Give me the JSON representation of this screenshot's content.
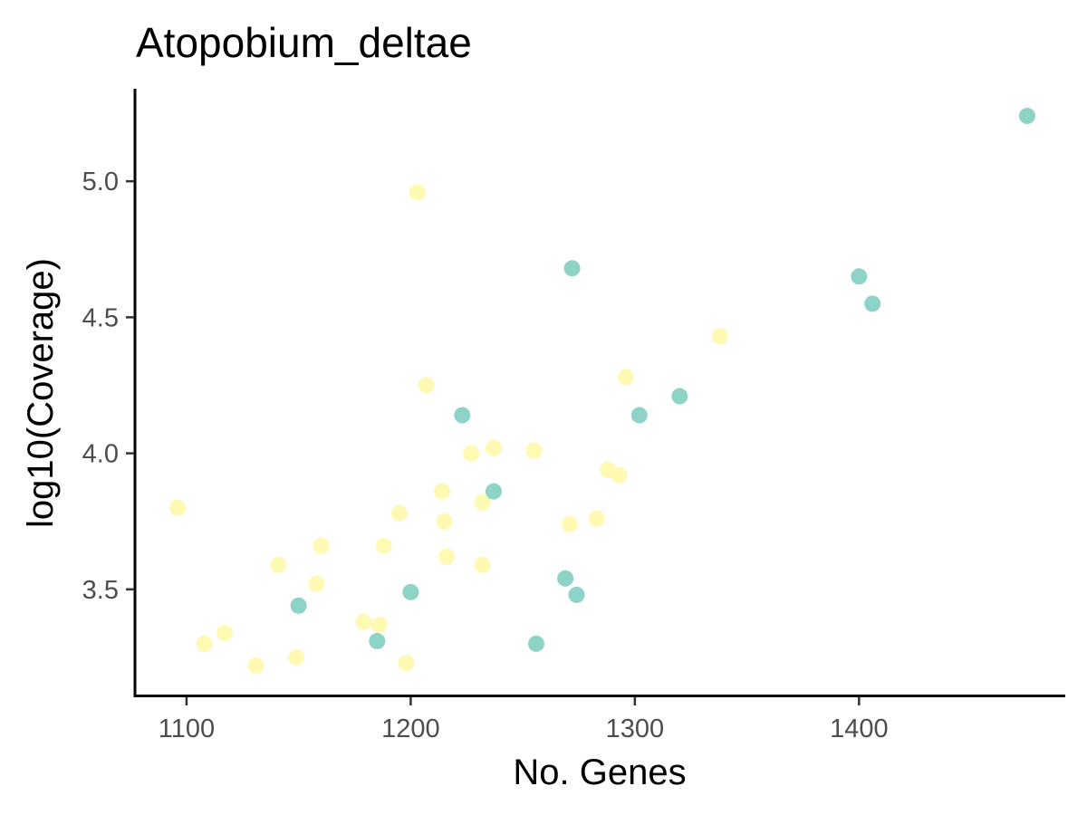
{
  "chart_data": {
    "type": "scatter",
    "title": "Atopobium_deltae",
    "xlabel": "No. Genes",
    "ylabel": "log10(Coverage)",
    "xlim": [
      1077,
      1492
    ],
    "ylim": [
      3.11,
      5.34
    ],
    "x_ticks": [
      1100,
      1200,
      1300,
      1400
    ],
    "y_ticks": [
      3.5,
      4.0,
      4.5,
      5.0
    ],
    "x_tick_labels": [
      "1100",
      "1200",
      "1300",
      "1400"
    ],
    "y_tick_labels": [
      "3.5",
      "4.0",
      "4.5",
      "5.0"
    ],
    "grid": false,
    "legend": "none",
    "series": [
      {
        "color": "#fffab3",
        "points": [
          {
            "x": 1096,
            "y": 3.8
          },
          {
            "x": 1108,
            "y": 3.3
          },
          {
            "x": 1117,
            "y": 3.34
          },
          {
            "x": 1131,
            "y": 3.22
          },
          {
            "x": 1141,
            "y": 3.59
          },
          {
            "x": 1149,
            "y": 3.25
          },
          {
            "x": 1158,
            "y": 3.52
          },
          {
            "x": 1160,
            "y": 3.66
          },
          {
            "x": 1179,
            "y": 3.38
          },
          {
            "x": 1186,
            "y": 3.37
          },
          {
            "x": 1188,
            "y": 3.66
          },
          {
            "x": 1195,
            "y": 3.78
          },
          {
            "x": 1198,
            "y": 3.23
          },
          {
            "x": 1203,
            "y": 4.96
          },
          {
            "x": 1207,
            "y": 4.25
          },
          {
            "x": 1214,
            "y": 3.86
          },
          {
            "x": 1215,
            "y": 3.75
          },
          {
            "x": 1216,
            "y": 3.62
          },
          {
            "x": 1227,
            "y": 4.0
          },
          {
            "x": 1232,
            "y": 3.82
          },
          {
            "x": 1232,
            "y": 3.59
          },
          {
            "x": 1237,
            "y": 4.02
          },
          {
            "x": 1255,
            "y": 4.01
          },
          {
            "x": 1271,
            "y": 3.74
          },
          {
            "x": 1283,
            "y": 3.76
          },
          {
            "x": 1288,
            "y": 3.94
          },
          {
            "x": 1293,
            "y": 3.92
          },
          {
            "x": 1296,
            "y": 4.28
          },
          {
            "x": 1338,
            "y": 4.43
          }
        ]
      },
      {
        "color": "#8dd3c7",
        "points": [
          {
            "x": 1150,
            "y": 3.44
          },
          {
            "x": 1185,
            "y": 3.31
          },
          {
            "x": 1200,
            "y": 3.49
          },
          {
            "x": 1223,
            "y": 4.14
          },
          {
            "x": 1237,
            "y": 3.86
          },
          {
            "x": 1256,
            "y": 3.3
          },
          {
            "x": 1269,
            "y": 3.54
          },
          {
            "x": 1272,
            "y": 4.68
          },
          {
            "x": 1274,
            "y": 3.48
          },
          {
            "x": 1302,
            "y": 4.14
          },
          {
            "x": 1320,
            "y": 4.21
          },
          {
            "x": 1400,
            "y": 4.65
          },
          {
            "x": 1406,
            "y": 4.55
          },
          {
            "x": 1475,
            "y": 5.24
          }
        ]
      }
    ]
  }
}
